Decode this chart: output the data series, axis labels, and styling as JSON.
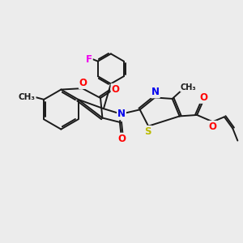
{
  "bg_color": "#ececec",
  "bond_color": "#1a1a1a",
  "atom_colors": {
    "O": "#ff0000",
    "N": "#0000ee",
    "S": "#bbbb00",
    "F": "#ee00ee",
    "C": "#1a1a1a"
  },
  "font_size": 8.5,
  "line_width": 1.4,
  "figsize": [
    3.0,
    3.0
  ],
  "dpi": 100
}
